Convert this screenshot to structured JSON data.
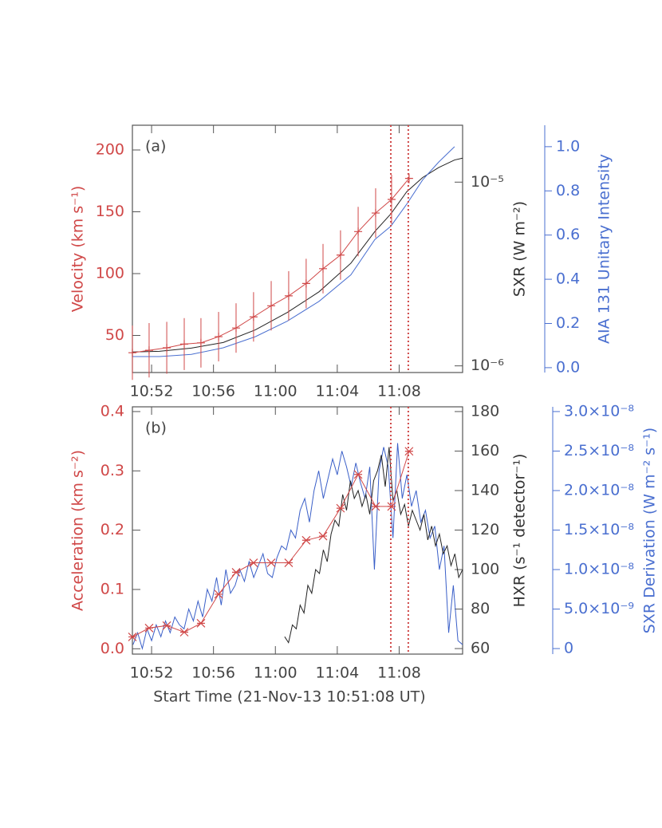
{
  "chart_data": [
    {
      "type": "line",
      "panel_label": "(a)",
      "xlim": [
        50.76,
        72.1
      ],
      "xticks": [
        {
          "value": 52,
          "label": "10:52"
        },
        {
          "value": 56,
          "label": "10:56"
        },
        {
          "value": 60,
          "label": "11:00"
        },
        {
          "value": 64,
          "label": "11:04"
        },
        {
          "value": 68,
          "label": "11:08"
        }
      ],
      "ylabel": "Velocity (km s⁻¹)",
      "ylim": [
        20,
        220
      ],
      "yticks": [
        50,
        100,
        150,
        200
      ],
      "ycolor": "#d04848",
      "y2label": "SXR (W m⁻²)",
      "y2lim": [
        9.2e-07,
        2.04e-05
      ],
      "y2log": true,
      "y2color": "#333333",
      "y2ticks": [
        {
          "value": 1e-06,
          "label": "10⁻⁶"
        },
        {
          "value": 1e-05,
          "label": "10⁻⁵"
        }
      ],
      "y3label": "AIA 131 Unitary Intensity",
      "y3lim": [
        -0.022,
        1.097
      ],
      "y3color": "#4a6fd0",
      "y3ticks": [
        {
          "value": 0,
          "label": "0.0"
        },
        {
          "value": 0.2,
          "label": "0.2"
        },
        {
          "value": 0.4,
          "label": "0.4"
        },
        {
          "value": 0.6,
          "label": "0.6"
        },
        {
          "value": 0.8,
          "label": "0.8"
        },
        {
          "value": 1.0,
          "label": "1.0"
        }
      ],
      "vlines": [
        67.46,
        68.59
      ],
      "vline_color": "#d04848",
      "series": [
        {
          "axis": "y2",
          "color": "#222222",
          "x": [
            50.76,
            52.51,
            54.57,
            56.63,
            58.7,
            60.76,
            62.82,
            64.88,
            66.43,
            67.46,
            68.49,
            69.52,
            70.55,
            71.58,
            72.1
          ],
          "values": [
            1.19e-06,
            1.2e-06,
            1.25e-06,
            1.34e-06,
            1.57e-06,
            1.95e-06,
            2.53e-06,
            3.62e-06,
            5.39e-06,
            6.71e-06,
            8.87e-06,
            1.06e-05,
            1.2e-05,
            1.32e-05,
            1.35e-05
          ]
        },
        {
          "axis": "y3",
          "color": "#4a6fd0",
          "x": [
            50.76,
            52.51,
            54.57,
            56.63,
            58.7,
            60.76,
            62.82,
            64.88,
            66.43,
            67.46,
            68.49,
            69.52,
            70.55,
            71.58
          ],
          "values": [
            0.05,
            0.05,
            0.06,
            0.09,
            0.14,
            0.21,
            0.3,
            0.42,
            0.58,
            0.64,
            0.74,
            0.85,
            0.93,
            1.0
          ]
        },
        {
          "axis": "y",
          "color": "#d04848",
          "marker": "plus",
          "x": [
            50.76,
            51.84,
            52.98,
            54.11,
            55.19,
            56.33,
            57.46,
            58.59,
            59.73,
            60.86,
            61.99,
            63.08,
            64.21,
            65.35,
            66.48,
            67.51,
            68.64
          ],
          "values": [
            36,
            38,
            40,
            43,
            44,
            49,
            56,
            65,
            74,
            82,
            92,
            104,
            115,
            134,
            149,
            160,
            177
          ],
          "errors": [
            22,
            22,
            21,
            21,
            20,
            20,
            20,
            20,
            20,
            20,
            20,
            20,
            20,
            20,
            20,
            20,
            4
          ]
        }
      ]
    },
    {
      "type": "line",
      "panel_label": "(b)",
      "xlim": [
        50.76,
        72.1
      ],
      "xticks": [
        {
          "value": 52,
          "label": "10:52"
        },
        {
          "value": 56,
          "label": "10:56"
        },
        {
          "value": 60,
          "label": "11:00"
        },
        {
          "value": 64,
          "label": "11:04"
        },
        {
          "value": 68,
          "label": "11:08"
        }
      ],
      "xlabel": "Start Time (21-Nov-13 10:51:08 UT)",
      "ylabel": "Acceleration (km s⁻²)",
      "ylim": [
        -0.009,
        0.408
      ],
      "ycolor": "#d04848",
      "yticks": [
        {
          "value": 0,
          "label": "0.0"
        },
        {
          "value": 0.1,
          "label": "0.1"
        },
        {
          "value": 0.2,
          "label": "0.2"
        },
        {
          "value": 0.3,
          "label": "0.3"
        },
        {
          "value": 0.4,
          "label": "0.4"
        }
      ],
      "y2label": "HXR (s⁻¹ detector⁻¹)",
      "y2lim": [
        57.2,
        182.4
      ],
      "y2color": "#333333",
      "y2ticks": [
        60,
        80,
        100,
        120,
        140,
        160,
        180
      ],
      "y3label": "SXR Derivation (W m⁻² s⁻¹)",
      "y3lim": [
        -7e-10,
        3.06e-08
      ],
      "y3color": "#4a6fd0",
      "y3ticks": [
        0,
        {
          "value": 5e-09,
          "label": "5.0×10⁻⁹"
        },
        {
          "value": 1e-08,
          "label": "1.0×10⁻⁸"
        },
        {
          "value": 1.5e-08,
          "label": "1.5×10⁻⁸"
        },
        {
          "value": 2e-08,
          "label": "2.0×10⁻⁸"
        },
        {
          "value": 2.5e-08,
          "label": "2.5×10⁻⁸"
        },
        {
          "value": 3e-08,
          "label": "3.0×10⁻⁸"
        }
      ],
      "vlines": [
        67.46,
        68.59
      ],
      "vline_color": "#d04848",
      "series": [
        {
          "axis": "y3",
          "color": "#3a5fc8",
          "x": [
            50.8,
            51.1,
            51.4,
            51.7,
            52.0,
            52.3,
            52.6,
            52.9,
            53.2,
            53.5,
            53.8,
            54.1,
            54.4,
            54.7,
            55.0,
            55.3,
            55.6,
            55.9,
            56.2,
            56.5,
            56.8,
            57.1,
            57.4,
            57.7,
            58.0,
            58.3,
            58.6,
            58.9,
            59.2,
            59.5,
            59.8,
            60.1,
            60.4,
            60.7,
            61.0,
            61.3,
            61.6,
            61.9,
            62.2,
            62.5,
            62.8,
            63.1,
            63.4,
            63.7,
            64.0,
            64.3,
            64.6,
            64.9,
            65.2,
            65.5,
            65.8,
            66.1,
            66.4,
            66.7,
            67.0,
            67.3,
            67.6,
            67.9,
            68.2,
            68.5,
            68.8,
            69.1,
            69.4,
            69.7,
            70.0,
            70.3,
            70.6,
            70.9,
            71.2,
            71.5,
            71.8,
            72.1
          ],
          "values": [
            5e-10,
            2e-09,
            0,
            2.5e-09,
            1e-09,
            3e-09,
            1.5e-09,
            3.5e-09,
            2e-09,
            4e-09,
            3e-09,
            2.5e-09,
            5e-09,
            3.5e-09,
            6e-09,
            4e-09,
            7.5e-09,
            6e-09,
            9e-09,
            5.5e-09,
            1e-08,
            7e-09,
            8e-09,
            1e-08,
            8.5e-09,
            1.1e-08,
            9e-09,
            1.05e-08,
            1.2e-08,
            9.5e-09,
            9e-09,
            1.15e-08,
            1.3e-08,
            1.25e-08,
            1.5e-08,
            1.4e-08,
            1.75e-08,
            1.9e-08,
            1.6e-08,
            2e-08,
            2.25e-08,
            1.9e-08,
            2.15e-08,
            2.4e-08,
            2.2e-08,
            2.5e-08,
            2.3e-08,
            2.05e-08,
            2.35e-08,
            2.1e-08,
            1.9e-08,
            2.3e-08,
            1e-08,
            2.25e-08,
            2.55e-08,
            2.3e-08,
            1.4e-08,
            2.6e-08,
            1.9e-08,
            2.2e-08,
            1.8e-08,
            2e-08,
            1.6e-08,
            1.75e-08,
            1.4e-08,
            1.55e-08,
            1e-08,
            1.3e-08,
            2e-09,
            8e-09,
            1e-09,
            5e-10
          ]
        },
        {
          "axis": "y2",
          "color": "#222222",
          "x": [
            60.6,
            60.85,
            61.1,
            61.35,
            61.6,
            61.85,
            62.1,
            62.35,
            62.6,
            62.85,
            63.1,
            63.35,
            63.6,
            63.85,
            64.1,
            64.35,
            64.6,
            64.85,
            65.1,
            65.35,
            65.6,
            65.85,
            66.1,
            66.35,
            66.6,
            66.85,
            67.1,
            67.35,
            67.6,
            67.85,
            68.1,
            68.35,
            68.6,
            68.85,
            69.1,
            69.35,
            69.6,
            69.85,
            70.1,
            70.35,
            70.6,
            70.85,
            71.1,
            71.35,
            71.6,
            71.85,
            72.1
          ],
          "values": [
            66,
            63,
            72,
            70,
            82,
            78,
            92,
            88,
            100,
            98,
            110,
            104,
            118,
            125,
            122,
            138,
            130,
            145,
            136,
            140,
            132,
            138,
            128,
            145,
            150,
            158,
            142,
            162,
            135,
            140,
            128,
            133,
            122,
            130,
            125,
            120,
            128,
            115,
            122,
            112,
            118,
            108,
            112,
            102,
            108,
            96,
            100
          ]
        },
        {
          "axis": "y",
          "color": "#d04848",
          "marker": "asterisk",
          "x": [
            50.76,
            51.84,
            52.98,
            54.11,
            55.19,
            56.33,
            57.46,
            58.59,
            59.73,
            60.86,
            61.99,
            63.08,
            64.21,
            65.35,
            66.48,
            67.51,
            68.64
          ],
          "values": [
            0.02,
            0.035,
            0.039,
            0.028,
            0.043,
            0.092,
            0.129,
            0.145,
            0.145,
            0.145,
            0.183,
            0.19,
            0.237,
            0.294,
            0.24,
            0.24,
            0.333
          ]
        }
      ]
    }
  ]
}
